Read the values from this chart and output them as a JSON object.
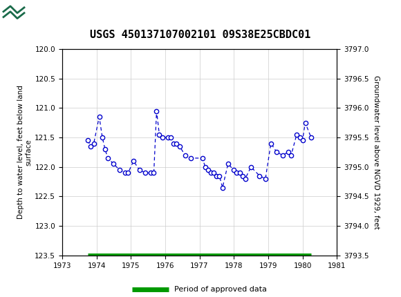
{
  "title": "USGS 450137107002101 09S38E25CBDC01",
  "ylabel_left": "Depth to water level, feet below land\nsurface",
  "ylabel_right": "Groundwater level above NGVD 1929, feet",
  "ylim_left": [
    123.5,
    120.0
  ],
  "ylim_right": [
    3793.5,
    3797.0
  ],
  "xlim": [
    1973,
    1981
  ],
  "xticks": [
    1973,
    1974,
    1975,
    1976,
    1977,
    1978,
    1979,
    1980,
    1981
  ],
  "yticks_left": [
    120.0,
    120.5,
    121.0,
    121.5,
    122.0,
    122.5,
    123.0,
    123.5
  ],
  "yticks_right": [
    3793.5,
    3794.0,
    3794.5,
    3795.0,
    3795.5,
    3796.0,
    3796.5,
    3797.0
  ],
  "data_x": [
    1973.75,
    1973.83,
    1973.92,
    1974.08,
    1974.17,
    1974.25,
    1974.33,
    1974.5,
    1974.67,
    1974.83,
    1974.92,
    1975.08,
    1975.25,
    1975.42,
    1975.58,
    1975.67,
    1975.75,
    1975.83,
    1975.92,
    1976.08,
    1976.17,
    1976.25,
    1976.33,
    1976.42,
    1976.58,
    1976.75,
    1977.08,
    1977.17,
    1977.25,
    1977.33,
    1977.42,
    1977.5,
    1977.58,
    1977.67,
    1977.83,
    1978.0,
    1978.08,
    1978.17,
    1978.25,
    1978.33,
    1978.5,
    1978.75,
    1978.92,
    1979.08,
    1979.25,
    1979.42,
    1979.58,
    1979.67,
    1979.83,
    1979.92,
    1980.0,
    1980.08,
    1980.25
  ],
  "data_y": [
    121.55,
    121.65,
    121.6,
    121.15,
    121.5,
    121.7,
    121.85,
    121.95,
    122.05,
    122.1,
    122.1,
    121.9,
    122.05,
    122.1,
    122.1,
    122.1,
    121.05,
    121.45,
    121.5,
    121.5,
    121.5,
    121.6,
    121.6,
    121.65,
    121.8,
    121.85,
    121.85,
    122.0,
    122.05,
    122.1,
    122.1,
    122.15,
    122.15,
    122.35,
    121.95,
    122.05,
    122.1,
    122.1,
    122.15,
    122.2,
    122.0,
    122.15,
    122.2,
    121.6,
    121.75,
    121.8,
    121.75,
    121.8,
    121.45,
    121.5,
    121.55,
    121.25,
    121.5
  ],
  "period_x_start": 1973.75,
  "period_x_end": 1980.25,
  "period_y": 123.5,
  "header_color": "#1a6b4a",
  "line_color": "#0000cc",
  "marker_facecolor": "#ffffff",
  "marker_edgecolor": "#0000cc",
  "period_color": "#009900",
  "bg_color": "#ffffff",
  "grid_color": "#cccccc",
  "border_color": "#000000"
}
